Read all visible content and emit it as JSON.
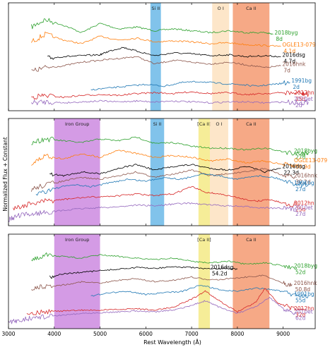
{
  "chart_data": {
    "type": "line",
    "xlabel": "Rest Wavelength (Å)",
    "ylabel": "Normalized Flux + Constant",
    "xlim": [
      3000,
      9700
    ],
    "xticks": [
      3000,
      4000,
      5000,
      6000,
      7000,
      8000,
      9000
    ],
    "grid": false,
    "panels": [
      {
        "bands": [
          {
            "label": "Si II",
            "x0": 6100,
            "x1": 6330,
            "color": "#6bb8e8"
          },
          {
            "label": "O I",
            "x0": 7450,
            "x1": 7820,
            "color": "#fde2bf"
          },
          {
            "label": "Ca II",
            "x0": 7900,
            "x1": 8700,
            "color": "#f59a71"
          }
        ],
        "series": [
          {
            "name": "2018byg",
            "phase": "8d",
            "color": "#2ca02c",
            "x": [
              3500,
              3800,
              4200,
              4600,
              5000,
              5400,
              5800,
              6200,
              6600,
              7000,
              7400,
              7800,
              8200,
              8600,
              8780
            ],
            "y": [
              0.86,
              0.94,
              0.88,
              0.8,
              0.9,
              0.84,
              0.86,
              0.82,
              0.84,
              0.82,
              0.8,
              0.82,
              0.8,
              0.8,
              0.78
            ]
          },
          {
            "name": "OGLE13-079",
            "phase": "4.1d",
            "color": "#ff7f0e",
            "x": [
              3500,
              3800,
              4200,
              4600,
              5000,
              5400,
              5800,
              6200,
              6600,
              7000,
              7400,
              7800,
              8200,
              8600,
              8950
            ],
            "y": [
              0.7,
              0.78,
              0.72,
              0.68,
              0.76,
              0.72,
              0.74,
              0.7,
              0.71,
              0.7,
              0.68,
              0.69,
              0.67,
              0.66,
              0.65
            ]
          },
          {
            "name": "2016dsg",
            "phase": "4.7d",
            "color": "#000000",
            "x": [
              3850,
              4200,
              4600,
              5000,
              5200,
              5500,
              5800,
              6200,
              6600,
              7000,
              7400,
              7800,
              8200,
              8600,
              8950
            ],
            "y": [
              0.52,
              0.54,
              0.55,
              0.56,
              0.6,
              0.64,
              0.6,
              0.55,
              0.58,
              0.57,
              0.55,
              0.56,
              0.54,
              0.55,
              0.54
            ]
          },
          {
            "name": "2016hnk",
            "phase": "7d",
            "color": "#8c564b",
            "x": [
              3500,
              3800,
              4200,
              4600,
              5000,
              5400,
              5800,
              6200,
              6600,
              7000,
              7400,
              7800,
              8200,
              8600,
              8950
            ],
            "y": [
              0.38,
              0.42,
              0.44,
              0.48,
              0.5,
              0.52,
              0.54,
              0.46,
              0.5,
              0.48,
              0.46,
              0.48,
              0.45,
              0.42,
              0.44
            ]
          },
          {
            "name": "1991bg",
            "phase": "2d",
            "color": "#1f77b4",
            "x": [
              4800,
              5200,
              5600,
              6000,
              6400,
              6800,
              7200,
              7600,
              8000,
              8400,
              8800,
              9150
            ],
            "y": [
              0.18,
              0.2,
              0.22,
              0.24,
              0.22,
              0.26,
              0.27,
              0.25,
              0.24,
              0.22,
              0.24,
              0.26
            ]
          },
          {
            "name": "2012hn",
            "phase": "25d",
            "color": "#d62728",
            "x": [
              3500,
              3800,
              4200,
              4600,
              5000,
              5400,
              5800,
              6200,
              6600,
              7000,
              7400,
              7800,
              8200,
              8600,
              9000,
              9400,
              9550
            ],
            "y": [
              0.1,
              0.12,
              0.1,
              0.12,
              0.13,
              0.12,
              0.14,
              0.15,
              0.14,
              0.16,
              0.14,
              0.15,
              0.13,
              0.14,
              0.15,
              0.14,
              0.13
            ]
          },
          {
            "name": "2010et",
            "phase": "2d",
            "color": "#9467bd",
            "x": [
              3500,
              3800,
              4200,
              4600,
              5000,
              5400,
              5800,
              6200,
              6600,
              7000,
              7400,
              7800,
              8200,
              8600,
              9000,
              9400,
              9550
            ],
            "y": [
              0.04,
              0.05,
              0.04,
              0.05,
              0.06,
              0.05,
              0.06,
              0.05,
              0.06,
              0.05,
              0.04,
              0.05,
              0.05,
              0.04,
              0.05,
              0.04,
              0.05
            ]
          }
        ]
      },
      {
        "bands": [
          {
            "label": "Iron Group",
            "x0": 4000,
            "x1": 5000,
            "color": "#cd8ae0"
          },
          {
            "label": "Si II",
            "x0": 6100,
            "x1": 6400,
            "color": "#6bb8e8"
          },
          {
            "label": "[Ca II]",
            "x0": 7150,
            "x1": 7400,
            "color": "#f4ea86"
          },
          {
            "label": "O I",
            "x0": 7400,
            "x1": 7800,
            "color": "#fde2bf"
          },
          {
            "label": "Ca II",
            "x0": 7900,
            "x1": 8700,
            "color": "#f59a71"
          }
        ],
        "series": [
          {
            "name": "2018byg",
            "phase": "27d",
            "color": "#2ca02c",
            "x": [
              3500,
              3800,
              4200,
              4600,
              5000,
              5400,
              5800,
              6200,
              6600,
              7000,
              7400,
              7800,
              8200,
              8600,
              9000,
              9400,
              9550
            ],
            "y": [
              0.86,
              0.9,
              0.88,
              0.86,
              0.9,
              0.88,
              0.92,
              0.85,
              0.86,
              0.82,
              0.8,
              0.8,
              0.78,
              0.8,
              0.76,
              0.74,
              0.75
            ]
          },
          {
            "name": "OGLE13-079",
            "phase": "30.9d",
            "color": "#ff7f0e",
            "x": [
              3500,
              3800,
              4200,
              4600,
              5000,
              5400,
              5800,
              6200,
              6600,
              7000,
              7400,
              7800,
              8200,
              8600,
              9000,
              9300
            ],
            "y": [
              0.62,
              0.72,
              0.68,
              0.74,
              0.7,
              0.78,
              0.74,
              0.7,
              0.72,
              0.7,
              0.66,
              0.68,
              0.64,
              0.66,
              0.62,
              0.6
            ]
          },
          {
            "name": "2016dsg",
            "phase": "22.3d",
            "color": "#000000",
            "x": [
              3900,
              4200,
              4600,
              5000,
              5400,
              5800,
              6200,
              6600,
              7000,
              7400,
              7800,
              8200,
              8600,
              8950
            ],
            "y": [
              0.52,
              0.5,
              0.54,
              0.52,
              0.58,
              0.62,
              0.56,
              0.6,
              0.62,
              0.58,
              0.56,
              0.6,
              0.54,
              0.58
            ]
          },
          {
            "name": "2016hnk",
            "phase": "30.2d",
            "color": "#8c564b",
            "x": [
              3500,
              3800,
              4200,
              4600,
              5000,
              5400,
              5800,
              6200,
              6600,
              7000,
              7400,
              7800,
              8200,
              8600,
              9000,
              9250
            ],
            "y": [
              0.35,
              0.4,
              0.44,
              0.48,
              0.46,
              0.5,
              0.54,
              0.48,
              0.52,
              0.56,
              0.5,
              0.52,
              0.54,
              0.58,
              0.5,
              0.48
            ]
          },
          {
            "name": "1991bg",
            "phase": "27d",
            "color": "#1f77b4",
            "x": [
              3600,
              4000,
              4400,
              4800,
              5200,
              5600,
              6000,
              6400,
              6800,
              7200,
              7600,
              8000,
              8400,
              8800,
              9200,
              9550
            ],
            "y": [
              0.3,
              0.36,
              0.4,
              0.38,
              0.42,
              0.46,
              0.44,
              0.48,
              0.46,
              0.52,
              0.5,
              0.46,
              0.5,
              0.48,
              0.42,
              0.4
            ]
          },
          {
            "name": "2012hn",
            "phase": "25d",
            "color": "#d62728",
            "x": [
              3100,
              3400,
              3800,
              4200,
              4600,
              5000,
              5400,
              5800,
              6200,
              6600,
              7000,
              7300,
              7600,
              8000,
              8400,
              8700,
              9000,
              9350
            ],
            "y": [
              0.14,
              0.18,
              0.22,
              0.24,
              0.26,
              0.27,
              0.28,
              0.3,
              0.28,
              0.3,
              0.38,
              0.32,
              0.3,
              0.26,
              0.22,
              0.24,
              0.2,
              0.18
            ]
          },
          {
            "name": "2010et",
            "phase": "27d",
            "color": "#9467bd",
            "x": [
              3000,
              3200,
              3500,
              3800,
              4200,
              4600,
              5000,
              5400,
              5800,
              6200,
              6600,
              7000,
              7400,
              7800,
              8200,
              8600,
              9000,
              9300
            ],
            "y": [
              0.02,
              0.06,
              0.08,
              0.1,
              0.12,
              0.14,
              0.15,
              0.16,
              0.18,
              0.17,
              0.19,
              0.2,
              0.18,
              0.17,
              0.16,
              0.15,
              0.14,
              0.13
            ]
          }
        ]
      },
      {
        "bands": [
          {
            "label": "Iron Group",
            "x0": 4000,
            "x1": 5000,
            "color": "#cd8ae0"
          },
          {
            "label": "[Ca II]",
            "x0": 7150,
            "x1": 7400,
            "color": "#f4ea86"
          },
          {
            "label": "Ca II",
            "x0": 7900,
            "x1": 8700,
            "color": "#f59a71"
          }
        ],
        "series": [
          {
            "name": "2018byg",
            "phase": "52d",
            "color": "#2ca02c",
            "x": [
              3500,
              3800,
              4200,
              4600,
              5000,
              5400,
              5800,
              6200,
              6600,
              7000,
              7400,
              7800,
              8200,
              8600,
              9000,
              9300
            ],
            "y": [
              0.82,
              0.88,
              0.86,
              0.84,
              0.88,
              0.86,
              0.84,
              0.82,
              0.84,
              0.8,
              0.78,
              0.8,
              0.76,
              0.78,
              0.74,
              0.72
            ]
          },
          {
            "name": "2016dsg",
            "phase": "54.2d",
            "color": "#000000",
            "x": [
              3900,
              4200,
              4600,
              5000,
              5400,
              5800,
              6200,
              6600,
              7000,
              7400,
              7800,
              8000
            ],
            "y": [
              0.6,
              0.64,
              0.66,
              0.68,
              0.7,
              0.72,
              0.71,
              0.73,
              0.72,
              0.7,
              0.71,
              0.7
            ]
          },
          {
            "name": "2016hnk",
            "phase": "50.8d",
            "color": "#8c564b",
            "x": [
              3500,
              3800,
              4200,
              4600,
              5000,
              5400,
              5800,
              6200,
              6600,
              7000,
              7400,
              7800,
              8200,
              8600,
              9000,
              9200
            ],
            "y": [
              0.46,
              0.48,
              0.5,
              0.54,
              0.52,
              0.56,
              0.58,
              0.54,
              0.56,
              0.6,
              0.56,
              0.58,
              0.6,
              0.62,
              0.52,
              0.5
            ]
          },
          {
            "name": "1991bg",
            "phase": "55d",
            "color": "#1f77b4",
            "x": [
              4800,
              5200,
              5600,
              6000,
              6400,
              6800,
              7200,
              7600,
              8000,
              8400,
              8800,
              9200,
              9550
            ],
            "y": [
              0.36,
              0.4,
              0.42,
              0.38,
              0.4,
              0.42,
              0.5,
              0.44,
              0.42,
              0.46,
              0.44,
              0.38,
              0.36
            ]
          },
          {
            "name": "2012hn",
            "phase": "32d",
            "color": "#d62728",
            "x": [
              3400,
              3800,
              4200,
              4600,
              5000,
              5400,
              5800,
              6200,
              6600,
              7000,
              7300,
              7600,
              8000,
              8400,
              8600,
              8900,
              9200,
              9500
            ],
            "y": [
              0.14,
              0.16,
              0.17,
              0.18,
              0.18,
              0.19,
              0.2,
              0.18,
              0.22,
              0.32,
              0.42,
              0.3,
              0.16,
              0.28,
              0.46,
              0.26,
              0.2,
              0.18
            ]
          },
          {
            "name": "2010et",
            "phase": "62d",
            "color": "#9467bd",
            "x": [
              3000,
              3200,
              3500,
              3800,
              4200,
              4600,
              5000,
              5400,
              5800,
              6200,
              6600,
              7000,
              7300,
              7600,
              8000,
              8400,
              8700,
              9000,
              9300
            ],
            "y": [
              0.02,
              0.05,
              0.08,
              0.1,
              0.12,
              0.14,
              0.15,
              0.16,
              0.17,
              0.16,
              0.18,
              0.24,
              0.3,
              0.22,
              0.14,
              0.22,
              0.34,
              0.2,
              0.14
            ]
          }
        ]
      }
    ]
  }
}
